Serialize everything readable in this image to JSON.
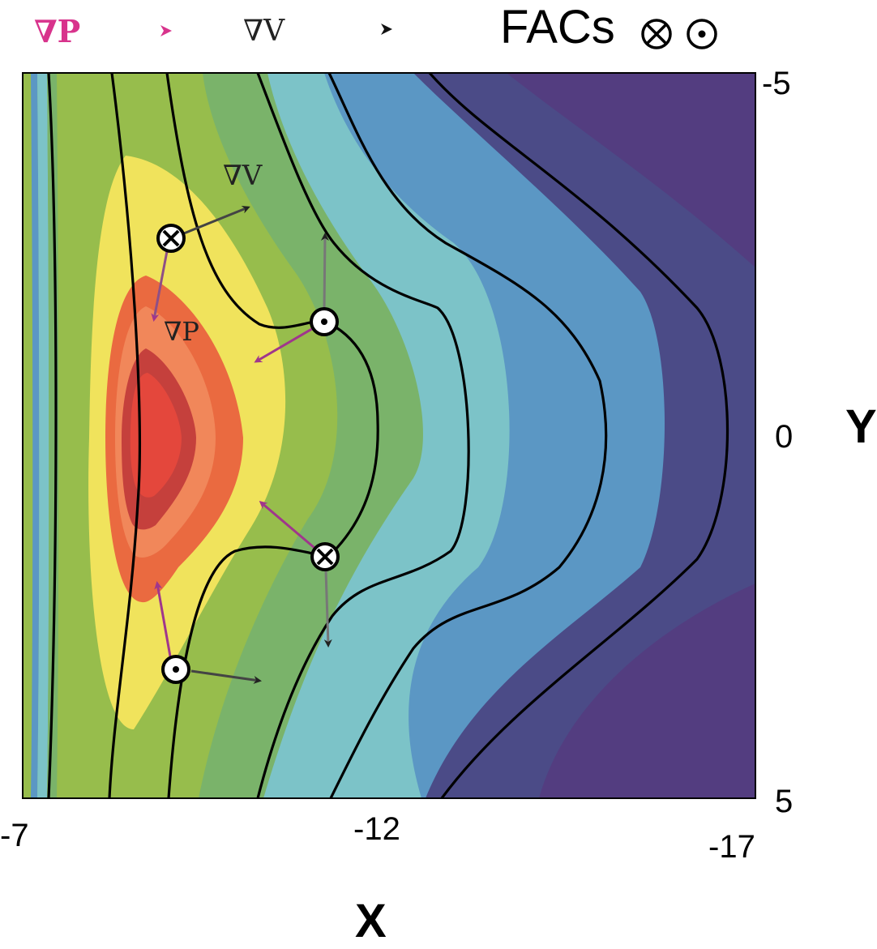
{
  "legend": {
    "grad_p": {
      "label": "∇P",
      "color": "#d8338c"
    },
    "grad_v": {
      "label": "∇V",
      "color": "#222222"
    },
    "facs": {
      "label": "FACs",
      "symbols": [
        "⊗",
        "⊙"
      ]
    }
  },
  "axes": {
    "x": {
      "label": "X",
      "ticks": [
        "-7",
        "-12",
        "-17"
      ],
      "range": [
        -7,
        -17
      ]
    },
    "y": {
      "label": "Y",
      "ticks": [
        "-5",
        "0",
        "5"
      ],
      "range": [
        -5,
        5
      ]
    }
  },
  "annotations": {
    "grad_v": "∇V",
    "grad_p": "∇P"
  },
  "colors": {
    "contour_fill_outer_to_inner": [
      "#533d80",
      "#4b4b87",
      "#5b97c4",
      "#7cc3c8",
      "#7ab36a",
      "#97bd4c",
      "#f0e35c",
      "#ea6a40",
      "#f1875a",
      "#c5403c",
      "#e4473c"
    ],
    "grad_p_arrow": "#a0368c",
    "grad_v_arrow": "#222222"
  },
  "fac_markers": [
    {
      "type": "into-page",
      "symbol": "⊗",
      "x": -9.0,
      "y": -2.8
    },
    {
      "type": "out-of-page",
      "symbol": "⊙",
      "x": -11.9,
      "y": -1.6
    },
    {
      "type": "into-page",
      "symbol": "⊗",
      "x": -11.9,
      "y": 1.7
    },
    {
      "type": "out-of-page",
      "symbol": "⊙",
      "x": -9.1,
      "y": 3.2
    }
  ]
}
